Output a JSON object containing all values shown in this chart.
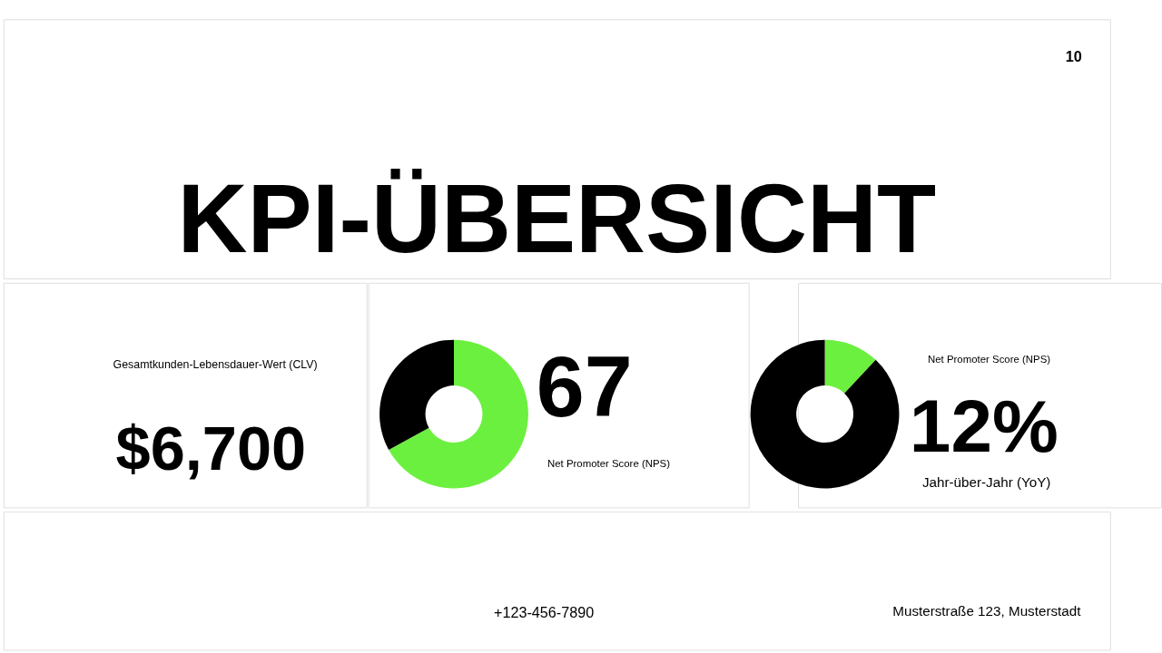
{
  "chart_data": [
    {
      "type": "other",
      "title": "KPI-ÜBERSICHT",
      "annotations": [
        "10",
        "Gesamtkunden-Lebensdauer-Wert (CLV)",
        "$6,700",
        "+123-456-7890",
        "Musterstraße 123, Musterstadt"
      ]
    },
    {
      "type": "donut",
      "categories": [
        null,
        null
      ],
      "values": [
        67,
        33
      ],
      "colors": [
        "#6cf03f",
        "#000000"
      ],
      "annotations": [
        "67",
        "Net Promoter Score (NPS)"
      ]
    },
    {
      "type": "donut",
      "categories": [
        null,
        null
      ],
      "values": [
        12,
        88
      ],
      "colors": [
        "#6cf03f",
        "#000000"
      ],
      "annotations": [
        "Net Promoter Score (NPS)",
        "12%",
        "Jahr-über-Jahr (YoY)"
      ]
    }
  ]
}
